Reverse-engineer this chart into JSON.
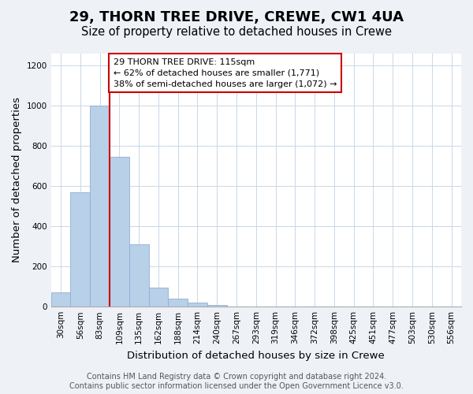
{
  "title": "29, THORN TREE DRIVE, CREWE, CW1 4UA",
  "subtitle": "Size of property relative to detached houses in Crewe",
  "xlabel": "Distribution of detached houses by size in Crewe",
  "ylabel": "Number of detached properties",
  "bar_values": [
    70,
    570,
    1000,
    745,
    310,
    95,
    40,
    20,
    10,
    0,
    0,
    0,
    0,
    0,
    0,
    0,
    0,
    0,
    0,
    0,
    0
  ],
  "bar_labels": [
    "30sqm",
    "56sqm",
    "83sqm",
    "109sqm",
    "135sqm",
    "162sqm",
    "188sqm",
    "214sqm",
    "240sqm",
    "267sqm",
    "293sqm",
    "319sqm",
    "346sqm",
    "372sqm",
    "398sqm",
    "425sqm",
    "451sqm",
    "477sqm",
    "503sqm",
    "530sqm",
    "556sqm"
  ],
  "bar_color": "#b8d0e8",
  "bar_edge_color": "#90afd0",
  "property_line_x": 3.0,
  "property_line_color": "#cc0000",
  "annotation_text": "29 THORN TREE DRIVE: 115sqm\n← 62% of detached houses are smaller (1,771)\n38% of semi-detached houses are larger (1,072) →",
  "annotation_box_color": "#ffffff",
  "annotation_box_edge": "#cc0000",
  "ylim": [
    0,
    1260
  ],
  "yticks": [
    0,
    200,
    400,
    600,
    800,
    1000,
    1200
  ],
  "footer_text": "Contains HM Land Registry data © Crown copyright and database right 2024.\nContains public sector information licensed under the Open Government Licence v3.0.",
  "background_color": "#eef2f7",
  "plot_background_color": "#ffffff",
  "title_fontsize": 13,
  "subtitle_fontsize": 10.5,
  "axis_label_fontsize": 9.5,
  "tick_label_fontsize": 7.5,
  "footer_fontsize": 7.0
}
